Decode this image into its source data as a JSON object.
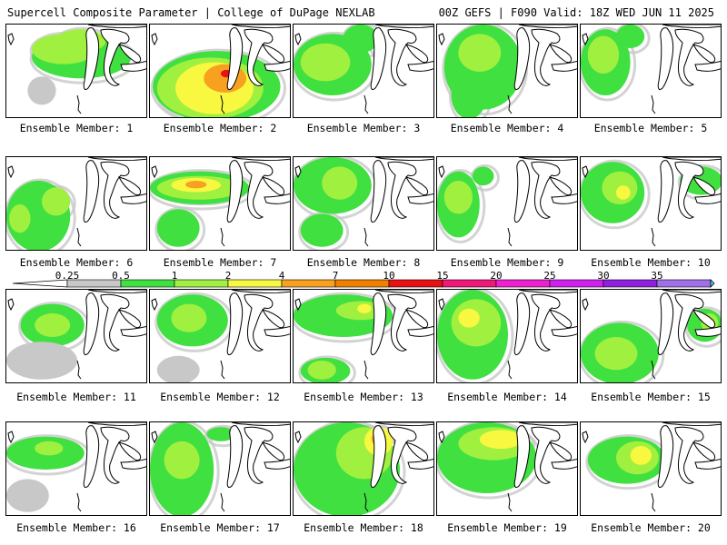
{
  "header": {
    "title": "Supercell Composite Parameter | College of DuPage NEXLAB",
    "run_info": "00Z GEFS | F090 Valid: 18Z WED JUN 11 2025"
  },
  "colors": {
    "c025": "#c8c8c8",
    "c05": "#40e040",
    "c1": "#a0f040",
    "c2": "#f8f840",
    "c4": "#f8a020",
    "c7": "#f08000",
    "c10": "#e81010",
    "c15": "#f01878",
    "c20": "#f020d0",
    "c25": "#d020f0",
    "c30": "#9020e0",
    "c35": "#a070e8",
    "cmax": "#30e8f0"
  },
  "colorbar": {
    "labels": [
      "0.25",
      "0.5",
      "1",
      "2",
      "4",
      "7",
      "10",
      "15",
      "20",
      "25",
      "30",
      "35"
    ]
  },
  "members": [
    {
      "label": "Ensemble Member: 1",
      "blobs": [
        [
          0.18,
          0.12,
          0.7,
          0.45,
          1
        ],
        [
          0.18,
          0.1,
          0.45,
          0.32,
          2
        ],
        [
          0.35,
          0.05,
          0.35,
          0.25,
          2
        ],
        [
          0.15,
          0.55,
          0.2,
          0.3,
          0
        ]
      ]
    },
    {
      "label": "Ensemble Member: 2",
      "blobs": [
        [
          0.02,
          0.28,
          0.9,
          0.75,
          1
        ],
        [
          0.05,
          0.35,
          0.75,
          0.65,
          2
        ],
        [
          0.18,
          0.4,
          0.55,
          0.55,
          3
        ],
        [
          0.38,
          0.42,
          0.3,
          0.3,
          4
        ],
        [
          0.5,
          0.48,
          0.08,
          0.08,
          6
        ]
      ]
    },
    {
      "label": "Ensemble Member: 3",
      "blobs": [
        [
          0.0,
          0.1,
          0.55,
          0.65,
          1
        ],
        [
          0.05,
          0.2,
          0.35,
          0.4,
          2
        ],
        [
          0.35,
          0.0,
          0.25,
          0.3,
          1
        ]
      ]
    },
    {
      "label": "Ensemble Member: 4",
      "blobs": [
        [
          0.05,
          0.0,
          0.55,
          0.9,
          1
        ],
        [
          0.15,
          0.1,
          0.3,
          0.4,
          2
        ],
        [
          0.1,
          0.5,
          0.25,
          0.5,
          1
        ]
      ]
    },
    {
      "label": "Ensemble Member: 5",
      "blobs": [
        [
          0.0,
          0.05,
          0.35,
          0.7,
          1
        ],
        [
          0.05,
          0.12,
          0.22,
          0.4,
          2
        ],
        [
          0.25,
          0.0,
          0.2,
          0.25,
          1
        ]
      ]
    },
    {
      "label": "Ensemble Member: 6",
      "blobs": [
        [
          0.0,
          0.25,
          0.45,
          0.75,
          1
        ],
        [
          0.25,
          0.32,
          0.2,
          0.3,
          2
        ],
        [
          0.02,
          0.5,
          0.15,
          0.3,
          2
        ]
      ]
    },
    {
      "label": "Ensemble Member: 7",
      "blobs": [
        [
          0.0,
          0.15,
          0.7,
          0.35,
          1
        ],
        [
          0.05,
          0.2,
          0.6,
          0.25,
          2
        ],
        [
          0.15,
          0.22,
          0.35,
          0.15,
          3
        ],
        [
          0.25,
          0.25,
          0.15,
          0.08,
          4
        ],
        [
          0.05,
          0.55,
          0.3,
          0.4,
          1
        ]
      ]
    },
    {
      "label": "Ensemble Member: 8",
      "blobs": [
        [
          0.0,
          0.0,
          0.55,
          0.6,
          1
        ],
        [
          0.2,
          0.1,
          0.25,
          0.35,
          2
        ],
        [
          0.05,
          0.6,
          0.3,
          0.35,
          1
        ]
      ]
    },
    {
      "label": "Ensemble Member: 9",
      "blobs": [
        [
          0.0,
          0.15,
          0.3,
          0.7,
          1
        ],
        [
          0.05,
          0.25,
          0.2,
          0.35,
          2
        ],
        [
          0.25,
          0.1,
          0.15,
          0.2,
          1
        ]
      ]
    },
    {
      "label": "Ensemble Member: 10",
      "blobs": [
        [
          0.0,
          0.05,
          0.45,
          0.65,
          1
        ],
        [
          0.15,
          0.15,
          0.25,
          0.35,
          2
        ],
        [
          0.25,
          0.3,
          0.1,
          0.15,
          3
        ],
        [
          0.7,
          0.1,
          0.3,
          0.3,
          1
        ]
      ]
    },
    {
      "label": "Ensemble Member: 11",
      "blobs": [
        [
          0.1,
          0.15,
          0.45,
          0.45,
          1
        ],
        [
          0.2,
          0.25,
          0.25,
          0.25,
          2
        ],
        [
          0.0,
          0.55,
          0.5,
          0.4,
          0
        ]
      ]
    },
    {
      "label": "Ensemble Member: 12",
      "blobs": [
        [
          0.05,
          0.05,
          0.5,
          0.55,
          1
        ],
        [
          0.15,
          0.15,
          0.25,
          0.3,
          2
        ],
        [
          0.05,
          0.7,
          0.3,
          0.3,
          0
        ]
      ]
    },
    {
      "label": "Ensemble Member: 13",
      "blobs": [
        [
          0.0,
          0.05,
          0.7,
          0.45,
          1
        ],
        [
          0.3,
          0.12,
          0.35,
          0.2,
          2
        ],
        [
          0.45,
          0.15,
          0.1,
          0.1,
          3
        ],
        [
          0.05,
          0.72,
          0.35,
          0.28,
          1
        ],
        [
          0.1,
          0.75,
          0.2,
          0.2,
          2
        ]
      ]
    },
    {
      "label": "Ensemble Member: 14",
      "blobs": [
        [
          0.0,
          0.0,
          0.5,
          0.95,
          1
        ],
        [
          0.1,
          0.1,
          0.35,
          0.5,
          2
        ],
        [
          0.15,
          0.2,
          0.15,
          0.2,
          3
        ]
      ]
    },
    {
      "label": "Ensemble Member: 15",
      "blobs": [
        [
          0.0,
          0.35,
          0.55,
          0.65,
          1
        ],
        [
          0.1,
          0.5,
          0.3,
          0.35,
          2
        ],
        [
          0.75,
          0.2,
          0.25,
          0.35,
          1
        ],
        [
          0.85,
          0.25,
          0.12,
          0.2,
          2
        ]
      ]
    },
    {
      "label": "Ensemble Member: 16",
      "blobs": [
        [
          0.0,
          0.15,
          0.55,
          0.35,
          1
        ],
        [
          0.2,
          0.2,
          0.2,
          0.15,
          2
        ],
        [
          0.0,
          0.6,
          0.3,
          0.35,
          0
        ]
      ]
    },
    {
      "label": "Ensemble Member: 17",
      "blobs": [
        [
          0.0,
          0.0,
          0.45,
          1.0,
          1
        ],
        [
          0.1,
          0.2,
          0.25,
          0.4,
          2
        ],
        [
          0.4,
          0.05,
          0.2,
          0.15,
          1
        ]
      ]
    },
    {
      "label": "Ensemble Member: 18",
      "blobs": [
        [
          0.0,
          0.0,
          0.75,
          1.0,
          1
        ],
        [
          0.3,
          0.05,
          0.4,
          0.55,
          2
        ],
        [
          0.5,
          0.05,
          0.2,
          0.3,
          3
        ],
        [
          0.55,
          0.1,
          0.1,
          0.15,
          4
        ],
        [
          0.6,
          0.12,
          0.05,
          0.08,
          5
        ]
      ]
    },
    {
      "label": "Ensemble Member: 19",
      "blobs": [
        [
          0.0,
          0.0,
          0.7,
          0.75,
          1
        ],
        [
          0.15,
          0.05,
          0.5,
          0.35,
          2
        ],
        [
          0.3,
          0.08,
          0.3,
          0.2,
          3
        ]
      ]
    },
    {
      "label": "Ensemble Member: 20",
      "blobs": [
        [
          0.05,
          0.15,
          0.55,
          0.5,
          1
        ],
        [
          0.25,
          0.2,
          0.3,
          0.35,
          2
        ],
        [
          0.35,
          0.25,
          0.15,
          0.2,
          3
        ]
      ]
    }
  ]
}
